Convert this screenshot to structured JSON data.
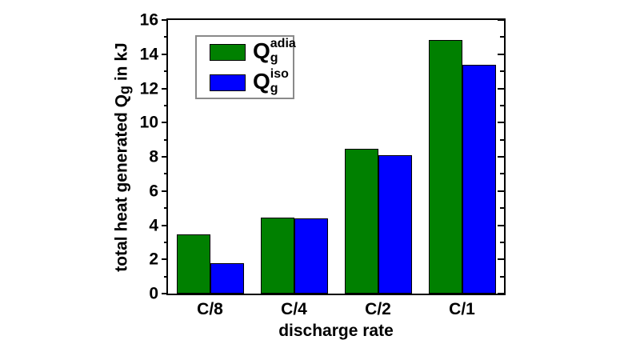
{
  "chart_data": {
    "type": "bar",
    "title": "",
    "categories": [
      "C/8",
      "C/4",
      "C/2",
      "C/1"
    ],
    "series": [
      {
        "name": "Qg_adia",
        "label_base": "Q",
        "label_sub": "g",
        "label_sup": "adia",
        "color": "#008000",
        "values": [
          3.45,
          4.45,
          8.45,
          14.85
        ]
      },
      {
        "name": "Qg_iso",
        "label_base": "Q",
        "label_sub": "g",
        "label_sup": "iso",
        "color": "#0000ff",
        "values": [
          1.8,
          4.4,
          8.1,
          13.4
        ]
      }
    ],
    "xlabel": "discharge rate",
    "ylabel_prefix": "total heat generated Q",
    "ylabel_sub": "g",
    "ylabel_suffix": " in kJ",
    "ylim": [
      0,
      16
    ],
    "y_major_step": 2,
    "y_minor_step": 1,
    "y_tick_labels": [
      "0",
      "2",
      "4",
      "6",
      "8",
      "10",
      "12",
      "14",
      "16"
    ],
    "legend_position": "top-left",
    "grid": false,
    "bar_group_fraction": 0.8
  },
  "colors": {
    "bar_edge": "#000000",
    "axis": "#000000",
    "legend_border": "#8a8a8a",
    "background": "#ffffff"
  }
}
